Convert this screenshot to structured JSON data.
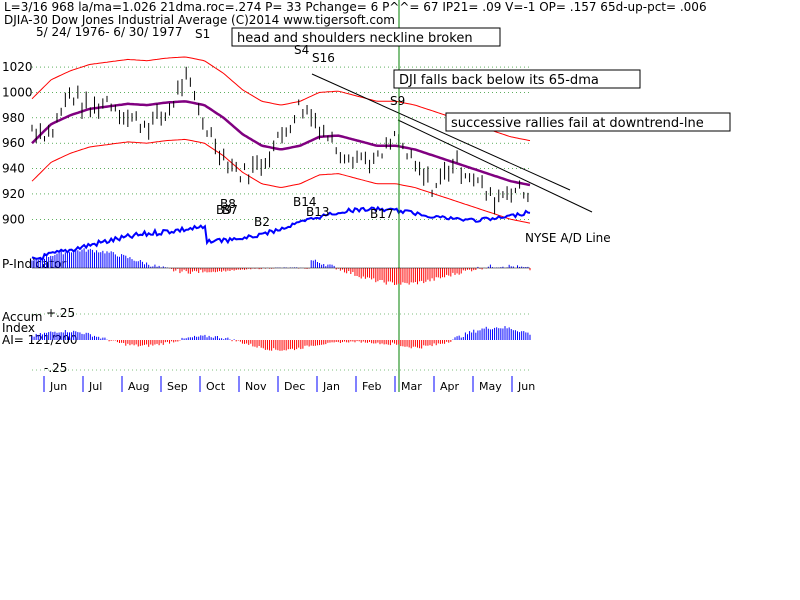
{
  "header": {
    "line1": "L=3/16   968   la/ma=1.026  21dma.roc=.274  P=   33  Pchange=   6  P^^= 67  IP21= .09  V=-1  OP= .157  65d-up-pct= .006",
    "line2": "DJIA-30   Dow Jones Industrial Average   (C)2014  www.tigersoft.com",
    "line3": "5/ 24/ 1976-  6/ 30/ 1977"
  },
  "annotations": [
    "head and shoulders neckline broken",
    "DJI falls back below its 65-dma",
    "successive rallies fail at downtrend-lne"
  ],
  "signals": [
    {
      "label": "S1",
      "dir": "down"
    },
    {
      "label": "S4",
      "dir": "down"
    },
    {
      "label": "S16",
      "dir": "down"
    },
    {
      "label": "S9",
      "dir": "down"
    },
    {
      "label": "B8",
      "dir": "up"
    },
    {
      "label": "B9",
      "dir": "up"
    },
    {
      "label": "B7",
      "dir": "up"
    },
    {
      "label": "B2",
      "dir": "up"
    },
    {
      "label": "B14",
      "dir": "up"
    },
    {
      "label": "B13",
      "dir": "up"
    },
    {
      "label": "B17",
      "dir": "up"
    }
  ],
  "panel_labels": {
    "nyse_ad": "NYSE A/D Line",
    "p_indicator": "P-Indicator",
    "accum_title": "Accum",
    "accum_index": "Index",
    "ai": "AI= 121/200",
    "accum_plus": "+.25",
    "accum_minus": "-.25"
  },
  "colors": {
    "price_bars": "#000000",
    "ma65": "#800080",
    "bands": "#ff0000",
    "ad_line": "#0000ff",
    "positive_hist": "#0000ff",
    "negative_hist": "#ff0000",
    "vertical_marker": "#008000",
    "grid": "#008000"
  },
  "chart_data": {
    "type": "line",
    "title": "DJIA-30 Dow Jones Industrial Average",
    "ylim": [
      890,
      1035
    ],
    "yticks": [
      900,
      920,
      940,
      960,
      980,
      1000,
      1020
    ],
    "months": [
      "Jun",
      "Jul",
      "Aug",
      "Sep",
      "Oct",
      "Nov",
      "Dec",
      "Jan",
      "Feb",
      "Mar",
      "Apr",
      "May",
      "Jun"
    ],
    "marker_date": "3/16",
    "series": [
      {
        "name": "DJIA",
        "x": [
          "1976-05",
          "1976-06a",
          "1976-06b",
          "1976-07a",
          "1976-07b",
          "1976-08a",
          "1976-08b",
          "1976-09a",
          "1976-09b",
          "1976-10a",
          "1976-10b",
          "1976-11a",
          "1976-11b",
          "1976-12a",
          "1976-12b",
          "1977-01a",
          "1977-01b",
          "1977-02a",
          "1977-02b",
          "1977-03a",
          "1977-03b",
          "1977-04a",
          "1977-04b",
          "1977-05a",
          "1977-05b",
          "1977-06a",
          "1977-06b"
        ],
        "values": [
          972,
          968,
          1000,
          985,
          995,
          980,
          975,
          982,
          1012,
          975,
          950,
          935,
          945,
          965,
          990,
          975,
          955,
          950,
          945,
          965,
          940,
          925,
          945,
          935,
          915,
          925,
          918
        ]
      },
      {
        "name": "65-dma",
        "values": [
          960,
          975,
          982,
          987,
          989,
          991,
          990,
          992,
          993,
          990,
          980,
          967,
          958,
          955,
          958,
          965,
          966,
          962,
          958,
          958,
          955,
          950,
          945,
          940,
          935,
          930,
          927
        ]
      }
    ]
  }
}
